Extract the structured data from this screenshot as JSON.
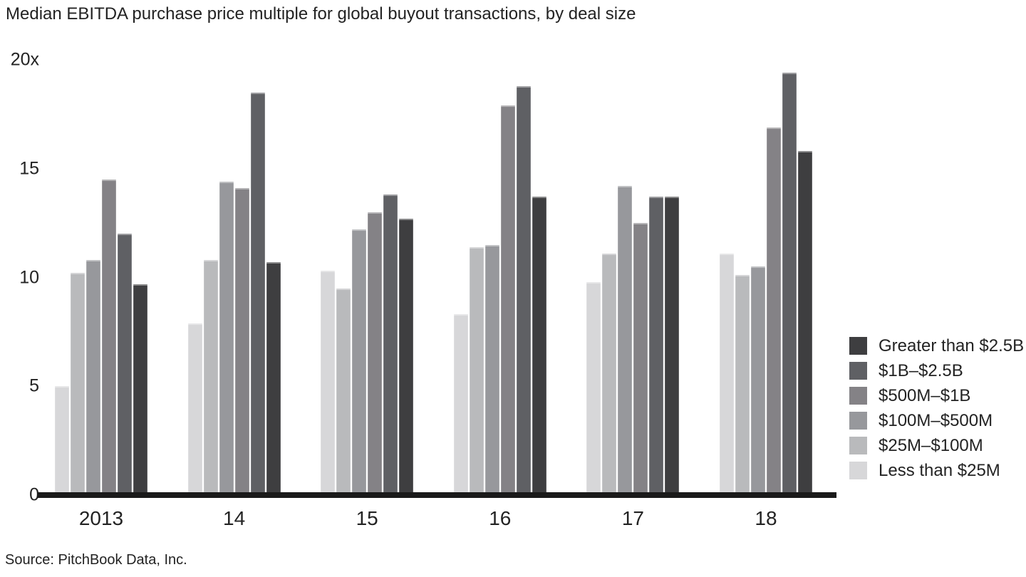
{
  "chart_data": {
    "type": "bar",
    "title": "Median EBITDA purchase price multiple for global buyout transactions, by deal size",
    "source": "Source: PitchBook Data, Inc.",
    "categories": [
      "2013",
      "14",
      "15",
      "16",
      "17",
      "18"
    ],
    "series": [
      {
        "name": "Less than $25M",
        "color": "#d7d7d9",
        "values": [
          5.0,
          7.9,
          10.3,
          8.3,
          9.8,
          11.1
        ]
      },
      {
        "name": "$25M–$100M",
        "color": "#b9babc",
        "values": [
          10.2,
          10.8,
          9.5,
          11.4,
          11.1,
          10.1
        ]
      },
      {
        "name": "$100M–$500M",
        "color": "#97989c",
        "values": [
          10.8,
          14.4,
          12.2,
          11.5,
          14.2,
          10.5
        ]
      },
      {
        "name": "$500M–$1B",
        "color": "#848286",
        "values": [
          14.5,
          14.1,
          13.0,
          17.9,
          12.5,
          16.9
        ]
      },
      {
        "name": "$1B–$2.5B",
        "color": "#5f6064",
        "values": [
          12.0,
          18.5,
          13.8,
          18.8,
          13.7,
          19.4
        ]
      },
      {
        "name": "Greater than $2.5B",
        "color": "#3e3e40",
        "values": [
          9.7,
          10.7,
          12.7,
          13.7,
          13.7,
          15.8
        ]
      }
    ],
    "legend_note": "legend shown top-to-bottom from largest deal size to smallest (reverse of bar order)",
    "ylim": [
      0,
      20
    ],
    "y_ticks": [
      {
        "label": "20x",
        "value": 20
      },
      {
        "label": "15",
        "value": 15
      },
      {
        "label": "10",
        "value": 10
      },
      {
        "label": "5",
        "value": 5
      },
      {
        "label": "0",
        "value": 0
      }
    ],
    "grid": false,
    "legend_position": "right",
    "xlabel": "",
    "ylabel": ""
  }
}
